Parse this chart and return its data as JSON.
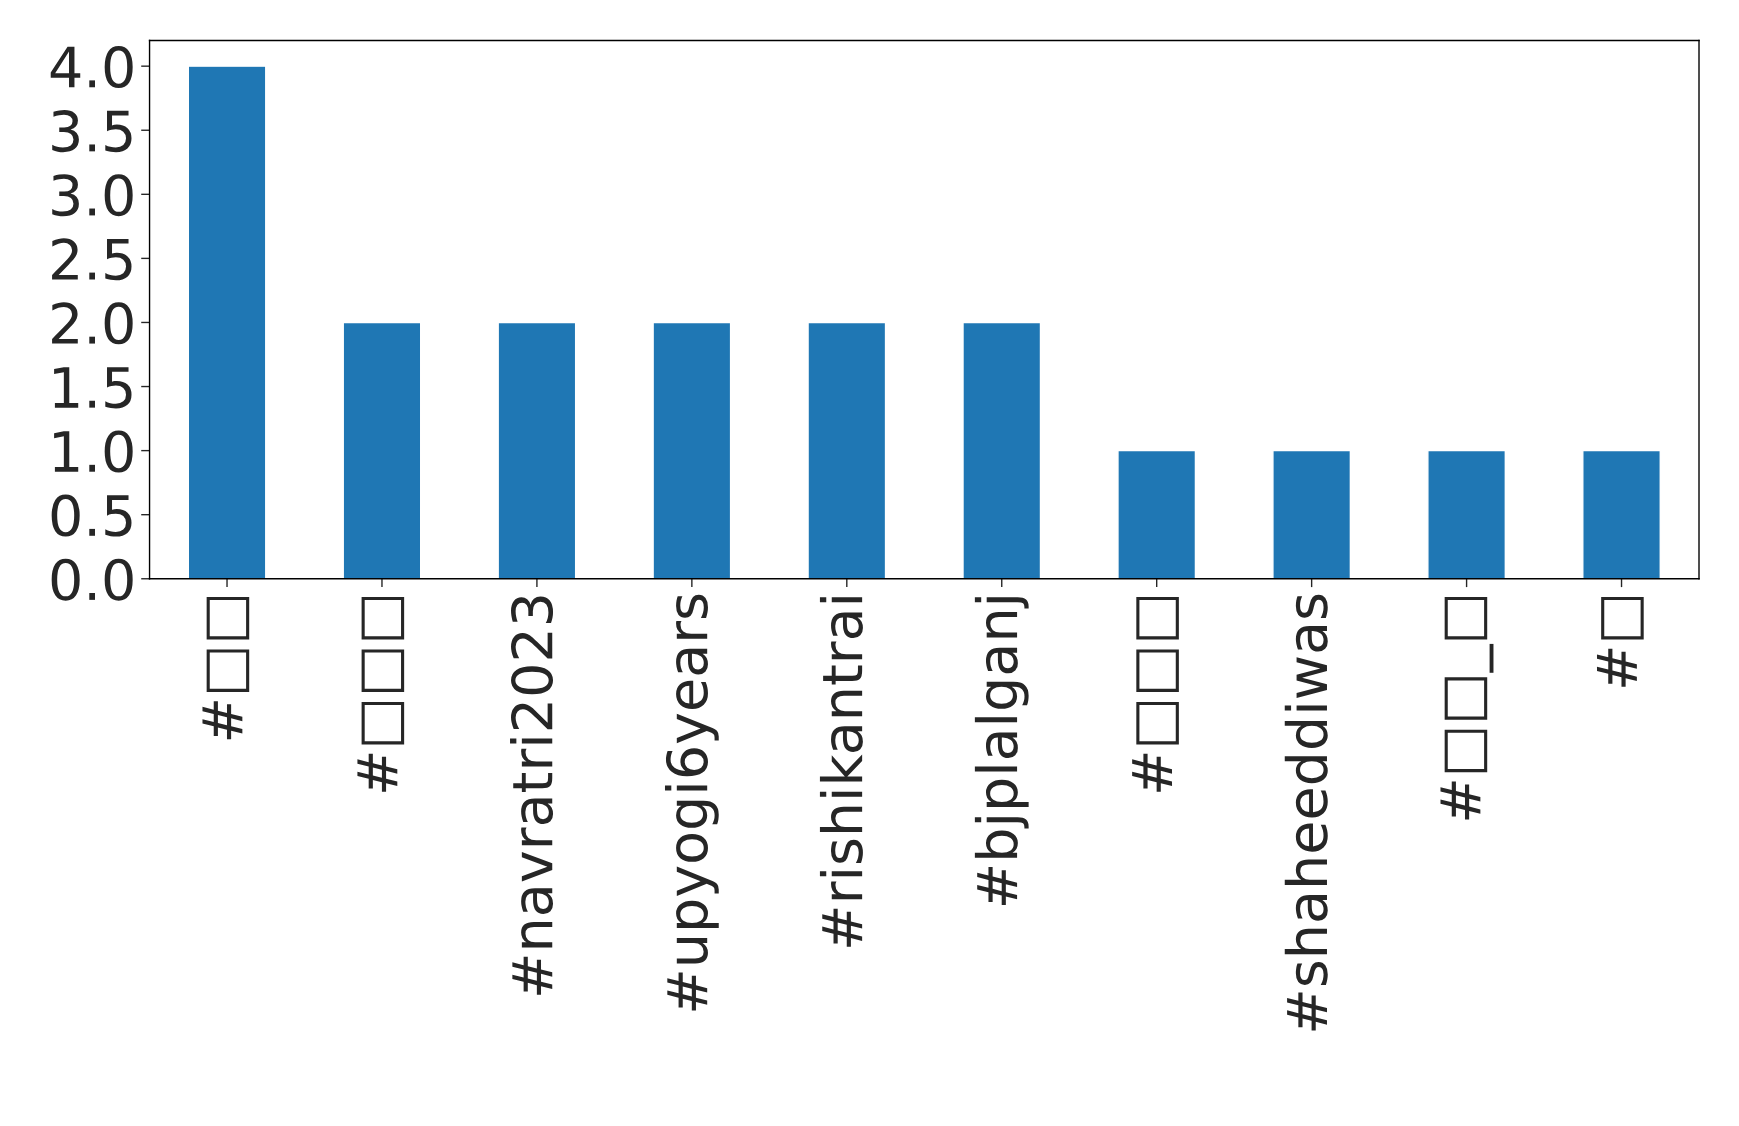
{
  "chart_data": {
    "type": "bar",
    "categories": [
      "#□□",
      "#□□□",
      "#navratri2023",
      "#upyogi6years",
      "#rishikantrai",
      "#bjplalganj",
      "#□□□",
      "#shaheeddiwas",
      "#□□_□",
      "#□"
    ],
    "values": [
      4,
      2,
      2,
      2,
      2,
      2,
      1,
      1,
      1,
      1
    ],
    "color": "#1f77b4",
    "ylim": [
      0,
      4.2
    ],
    "yticks": [
      {
        "value": 0,
        "label": "0.0"
      },
      {
        "value": 0.5,
        "label": "0.5"
      },
      {
        "value": 1,
        "label": "1.0"
      },
      {
        "value": 1.5,
        "label": "1.5"
      },
      {
        "value": 2,
        "label": "2.0"
      },
      {
        "value": 2.5,
        "label": "2.5"
      },
      {
        "value": 3,
        "label": "3.0"
      },
      {
        "value": 3.5,
        "label": "3.5"
      },
      {
        "value": 4,
        "label": "4.0"
      }
    ],
    "grid": false,
    "legend": false
  }
}
